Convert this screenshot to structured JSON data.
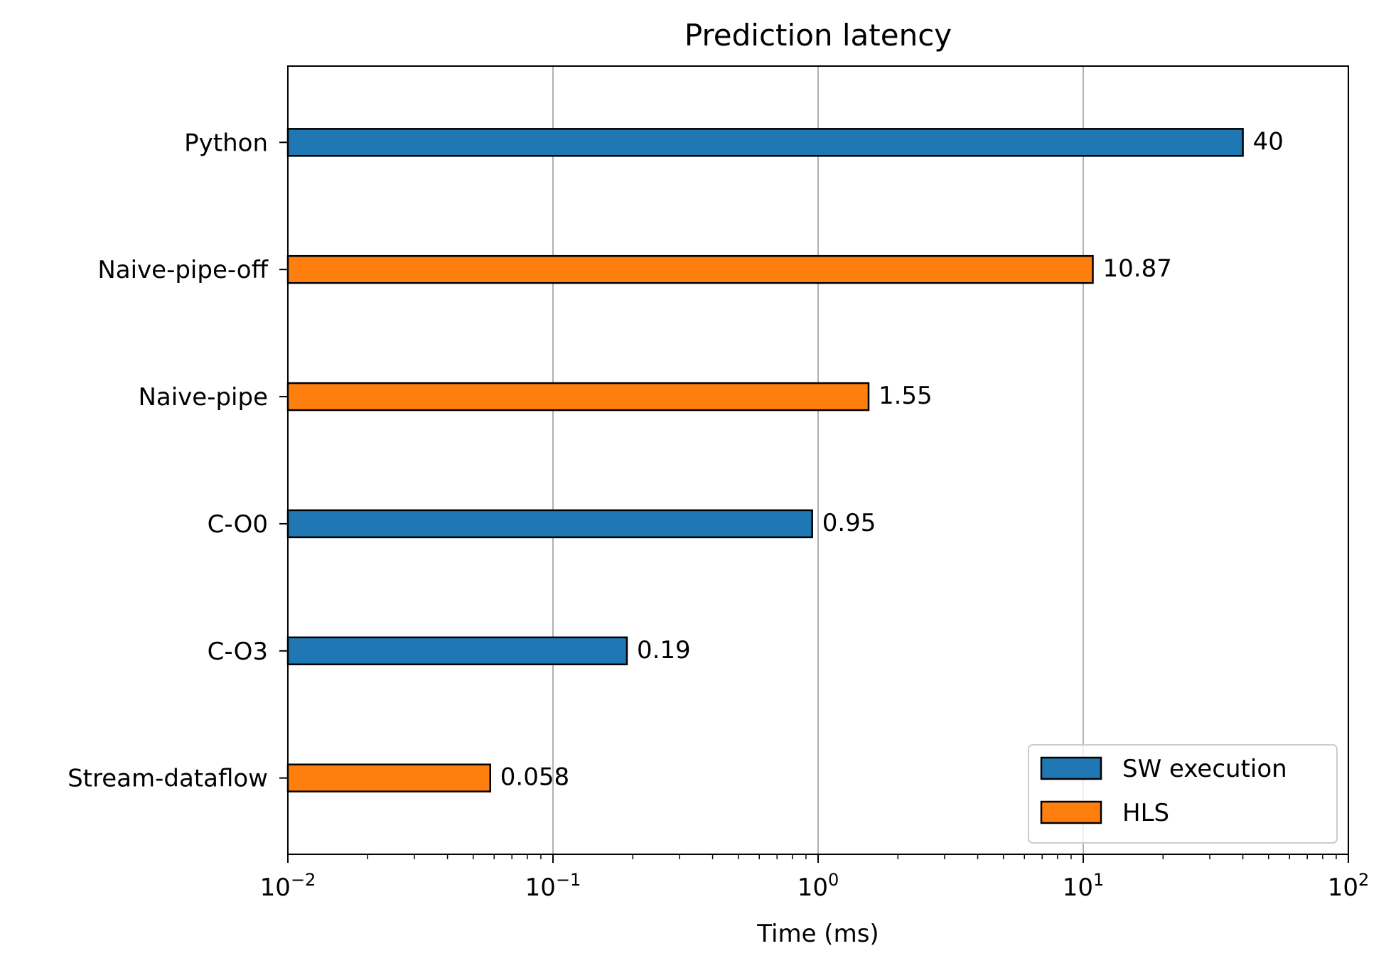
{
  "chart_data": {
    "type": "bar",
    "orientation": "horizontal",
    "title": "Prediction latency",
    "xlabel": "Time (ms)",
    "ylabel": "",
    "xscale": "log",
    "xlim": [
      0.01,
      100
    ],
    "x_ticks": [
      {
        "value": 0.01,
        "base": "10",
        "exp": "−2"
      },
      {
        "value": 0.1,
        "base": "10",
        "exp": "−1"
      },
      {
        "value": 1,
        "base": "10",
        "exp": "0"
      },
      {
        "value": 10,
        "base": "10",
        "exp": "1"
      },
      {
        "value": 100,
        "base": "10",
        "exp": "2"
      }
    ],
    "grid": "x-major",
    "legend_position": "bottom-right",
    "series": [
      {
        "name": "SW execution",
        "color": "#1f77b4"
      },
      {
        "name": "HLS",
        "color": "#ff7f0e"
      }
    ],
    "bars": [
      {
        "category": "Python",
        "value": 40,
        "label": "40",
        "series": "SW execution"
      },
      {
        "category": "Naive-pipe-off",
        "value": 10.87,
        "label": "10.87",
        "series": "HLS"
      },
      {
        "category": "Naive-pipe",
        "value": 1.55,
        "label": "1.55",
        "series": "HLS"
      },
      {
        "category": "C-O0",
        "value": 0.95,
        "label": "0.95",
        "series": "SW execution"
      },
      {
        "category": "C-O3",
        "value": 0.19,
        "label": "0.19",
        "series": "SW execution"
      },
      {
        "category": "Stream-dataflow",
        "value": 0.058,
        "label": "0.058",
        "series": "HLS"
      }
    ]
  }
}
